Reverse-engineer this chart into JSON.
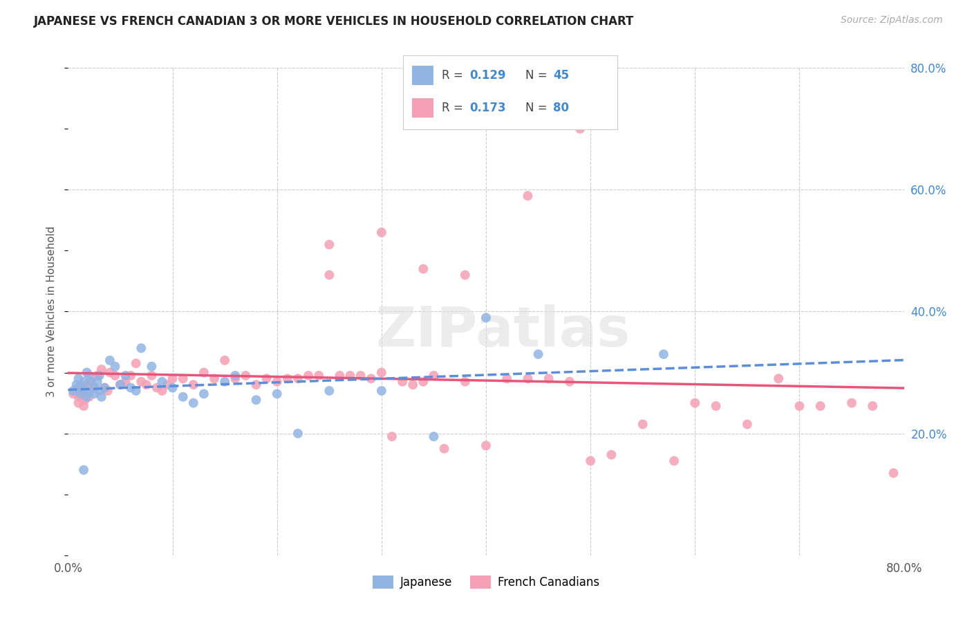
{
  "title": "JAPANESE VS FRENCH CANADIAN 3 OR MORE VEHICLES IN HOUSEHOLD CORRELATION CHART",
  "source": "Source: ZipAtlas.com",
  "ylabel": "3 or more Vehicles in Household",
  "x_min": 0.0,
  "x_max": 0.8,
  "y_min": 0.0,
  "y_max": 0.8,
  "japanese_color": "#92b4e3",
  "french_color": "#f4a0b5",
  "japanese_line_color": "#5b8dd9",
  "french_line_color": "#e8547a",
  "japanese_r": 0.129,
  "japanese_n": 45,
  "french_r": 0.173,
  "french_n": 80,
  "legend_label_japanese": "Japanese",
  "legend_label_french": "French Canadians",
  "japanese_x": [
    0.005,
    0.008,
    0.01,
    0.012,
    0.01,
    0.015,
    0.018,
    0.012,
    0.016,
    0.02,
    0.018,
    0.022,
    0.025,
    0.02,
    0.025,
    0.03,
    0.028,
    0.032,
    0.035,
    0.03,
    0.04,
    0.045,
    0.05,
    0.055,
    0.06,
    0.065,
    0.07,
    0.08,
    0.09,
    0.1,
    0.11,
    0.12,
    0.13,
    0.15,
    0.16,
    0.18,
    0.2,
    0.22,
    0.25,
    0.3,
    0.35,
    0.4,
    0.45,
    0.57,
    0.015
  ],
  "japanese_y": [
    0.27,
    0.28,
    0.275,
    0.265,
    0.29,
    0.285,
    0.26,
    0.278,
    0.272,
    0.268,
    0.3,
    0.285,
    0.275,
    0.295,
    0.265,
    0.27,
    0.285,
    0.26,
    0.275,
    0.295,
    0.32,
    0.31,
    0.28,
    0.295,
    0.275,
    0.27,
    0.34,
    0.31,
    0.285,
    0.275,
    0.26,
    0.25,
    0.265,
    0.285,
    0.295,
    0.255,
    0.265,
    0.2,
    0.27,
    0.27,
    0.195,
    0.39,
    0.33,
    0.33,
    0.14
  ],
  "french_x": [
    0.005,
    0.008,
    0.01,
    0.012,
    0.01,
    0.015,
    0.018,
    0.012,
    0.016,
    0.02,
    0.022,
    0.025,
    0.028,
    0.032,
    0.035,
    0.038,
    0.04,
    0.045,
    0.05,
    0.055,
    0.06,
    0.065,
    0.07,
    0.075,
    0.08,
    0.085,
    0.09,
    0.095,
    0.1,
    0.11,
    0.12,
    0.13,
    0.14,
    0.15,
    0.16,
    0.17,
    0.18,
    0.19,
    0.2,
    0.21,
    0.22,
    0.23,
    0.24,
    0.25,
    0.26,
    0.27,
    0.28,
    0.29,
    0.3,
    0.31,
    0.32,
    0.33,
    0.34,
    0.35,
    0.36,
    0.38,
    0.4,
    0.42,
    0.44,
    0.46,
    0.48,
    0.5,
    0.52,
    0.55,
    0.58,
    0.6,
    0.62,
    0.65,
    0.68,
    0.7,
    0.72,
    0.75,
    0.77,
    0.79,
    0.38,
    0.25,
    0.3,
    0.44,
    0.49,
    0.34
  ],
  "french_y": [
    0.265,
    0.27,
    0.26,
    0.275,
    0.25,
    0.245,
    0.28,
    0.265,
    0.255,
    0.26,
    0.285,
    0.275,
    0.295,
    0.305,
    0.275,
    0.27,
    0.3,
    0.295,
    0.28,
    0.285,
    0.295,
    0.315,
    0.285,
    0.28,
    0.295,
    0.275,
    0.27,
    0.28,
    0.29,
    0.29,
    0.28,
    0.3,
    0.29,
    0.32,
    0.29,
    0.295,
    0.28,
    0.29,
    0.285,
    0.29,
    0.29,
    0.295,
    0.295,
    0.51,
    0.295,
    0.295,
    0.295,
    0.29,
    0.3,
    0.195,
    0.285,
    0.28,
    0.285,
    0.295,
    0.175,
    0.285,
    0.18,
    0.29,
    0.29,
    0.29,
    0.285,
    0.155,
    0.165,
    0.215,
    0.155,
    0.25,
    0.245,
    0.215,
    0.29,
    0.245,
    0.245,
    0.25,
    0.245,
    0.135,
    0.46,
    0.46,
    0.53,
    0.59,
    0.7,
    0.47
  ],
  "watermark": "ZIPatlas",
  "background_color": "#ffffff",
  "grid_color": "#cccccc",
  "right_tick_color": "#4488cc"
}
